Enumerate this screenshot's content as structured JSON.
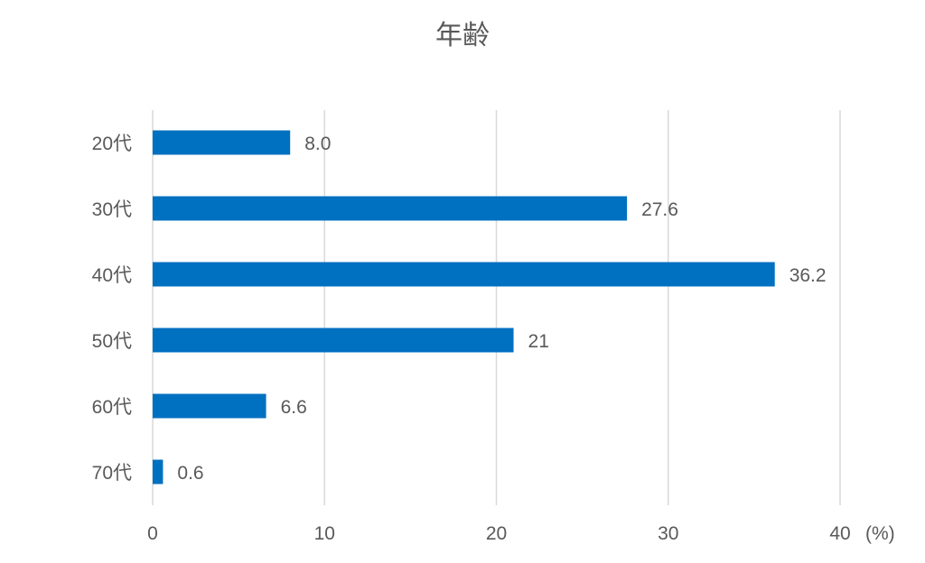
{
  "chart_data": {
    "type": "bar",
    "orientation": "horizontal",
    "title": "年齢",
    "categories": [
      "20代",
      "30代",
      "40代",
      "50代",
      "60代",
      "70代"
    ],
    "values": [
      8.0,
      27.6,
      36.2,
      21,
      6.6,
      0.6
    ],
    "data_labels": [
      "8.0",
      "27.6",
      "36.2",
      "21",
      "6.6",
      "0.6"
    ],
    "xlim": [
      0,
      40
    ],
    "x_ticks": [
      0,
      10,
      20,
      30,
      40
    ],
    "x_unit": "(%)",
    "grid": "vertical",
    "legend": "none",
    "bar_color": "#0070C0"
  }
}
